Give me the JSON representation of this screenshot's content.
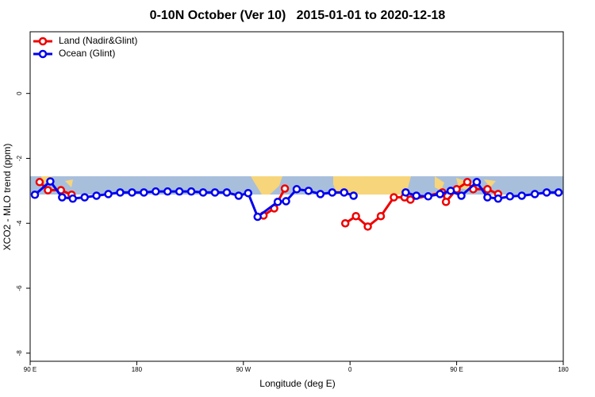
{
  "chart_data": {
    "type": "line",
    "title": "0-10N October (Ver 10)   2015-01-01 to 2020-12-18",
    "x_label": "Longitude (deg E)",
    "y_label": "XCO2 - MLO trend (ppm)",
    "xlim": [
      90,
      540
    ],
    "ylim": [
      -8.25,
      1.9
    ],
    "xticks": [
      {
        "value": 90,
        "label": "90 E"
      },
      180,
      {
        "value": 270,
        "label": "90 W"
      },
      {
        "value": 360,
        "label": "0"
      },
      {
        "value": 450,
        "label": "90 E"
      },
      180
    ],
    "yticks": [
      0,
      -2,
      -4,
      -6,
      -8
    ],
    "legend": "top-left",
    "series": [
      {
        "name": "Land (Nadir&Glint)",
        "color": "#ee0000",
        "x": [
          98,
          105,
          116,
          125,
          null,
          287,
          296,
          305,
          null,
          356,
          365,
          375,
          386,
          397,
          406,
          411,
          438,
          441,
          450,
          459,
          464,
          476,
          485
        ],
        "values": [
          -2.73,
          -2.98,
          -2.98,
          -3.12,
          null,
          -3.76,
          -3.54,
          -2.93,
          null,
          -4.0,
          -3.78,
          -4.1,
          -3.78,
          -3.2,
          -3.2,
          -3.27,
          -3.05,
          -3.34,
          -2.95,
          -2.73,
          -2.95,
          -2.95,
          -3.1
        ]
      },
      {
        "name": "Ocean (Glint)",
        "color": "#0000ee",
        "x": [
          94,
          107,
          117,
          126,
          136,
          146,
          156,
          166,
          176,
          186,
          196,
          206,
          216,
          226,
          236,
          246,
          256,
          266,
          274,
          282,
          299,
          306,
          315,
          325,
          335,
          345,
          355,
          363,
          null,
          407,
          416,
          426,
          436,
          445,
          454,
          467,
          476,
          485,
          495,
          505,
          516,
          526,
          536
        ],
        "values": [
          -3.12,
          -2.71,
          -3.2,
          -3.24,
          -3.2,
          -3.15,
          -3.1,
          -3.05,
          -3.05,
          -3.05,
          -3.02,
          -3.02,
          -3.02,
          -3.02,
          -3.05,
          -3.05,
          -3.05,
          -3.15,
          -3.07,
          -3.8,
          -3.34,
          -3.32,
          -2.95,
          -3.0,
          -3.1,
          -3.05,
          -3.05,
          -3.15,
          null,
          -3.05,
          -3.15,
          -3.17,
          -3.1,
          -3.0,
          -3.15,
          -2.73,
          -3.2,
          -3.24,
          -3.17,
          -3.15,
          -3.1,
          -3.05,
          -3.05
        ]
      }
    ]
  }
}
